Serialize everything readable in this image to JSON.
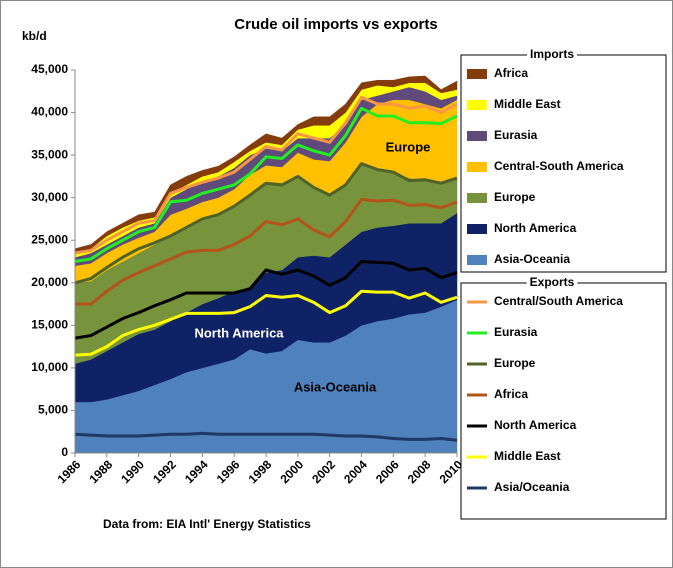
{
  "chart_data": {
    "type": "area",
    "stacked": true,
    "title": "Crude oil imports vs exports",
    "ylabel": "kb/d",
    "note": "Data from: EIA Intl' Energy Statistics",
    "annotations": [
      "Europe",
      "North America",
      "Asia-Oceania"
    ],
    "x": [
      1986,
      1987,
      1988,
      1989,
      1990,
      1991,
      1992,
      1993,
      1994,
      1995,
      1996,
      1997,
      1998,
      1999,
      2000,
      2001,
      2002,
      2003,
      2004,
      2005,
      2006,
      2007,
      2008,
      2009,
      2010
    ],
    "xlim": [
      1986,
      2010
    ],
    "xticks": [
      1986,
      1988,
      1990,
      1992,
      1994,
      1996,
      1998,
      2000,
      2002,
      2004,
      2006,
      2008,
      2010
    ],
    "ylim": [
      0,
      45000
    ],
    "yticks": [
      0,
      {
        "value": 5000,
        "label": "5,000"
      },
      {
        "value": 10000,
        "label": "10,000"
      },
      {
        "value": 15000,
        "label": "15,000"
      },
      {
        "value": 20000,
        "label": "20,000"
      },
      {
        "value": 25000,
        "label": "25,000"
      },
      {
        "value": 30000,
        "label": "30,000"
      },
      {
        "value": 35000,
        "label": "35,000"
      },
      {
        "value": 40000,
        "label": "40,000"
      },
      {
        "value": 45000,
        "label": "45,000"
      }
    ],
    "legend_title": "Imports",
    "series": [
      {
        "name": "Asia-Oceania",
        "color": "#4f81bd",
        "values": [
          6000,
          6000,
          6300,
          6800,
          7300,
          8000,
          8700,
          9500,
          10000,
          10500,
          11000,
          12200,
          11700,
          12000,
          13300,
          13000,
          13000,
          13800,
          15000,
          15500,
          15800,
          16300,
          16500,
          17200,
          18000
        ]
      },
      {
        "name": "North America",
        "color": "#0f2266",
        "values": [
          4500,
          5000,
          5700,
          6200,
          6700,
          6500,
          6800,
          7000,
          7500,
          7700,
          8000,
          7300,
          9500,
          9500,
          9700,
          10200,
          10000,
          10700,
          11000,
          11000,
          10900,
          10700,
          10500,
          9800,
          10200
        ]
      },
      {
        "name": "Europe",
        "color": "#77933c",
        "values": [
          9500,
          9200,
          9500,
          9500,
          9500,
          10000,
          10000,
          10000,
          10000,
          9800,
          10000,
          11000,
          10500,
          10000,
          9500,
          8100,
          7500,
          7000,
          8000,
          6800,
          6300,
          5300,
          5000,
          4800,
          4000
        ]
      },
      {
        "name": "Central-South America",
        "color": "#ffc000",
        "values": [
          2000,
          2100,
          2000,
          2000,
          1800,
          1500,
          2500,
          2200,
          2000,
          2000,
          2000,
          2200,
          2100,
          2100,
          2800,
          3200,
          3800,
          5000,
          5500,
          7700,
          8500,
          9200,
          9000,
          8700,
          9300
        ]
      },
      {
        "name": "Eurasia",
        "color": "#604a7b",
        "values": [
          1000,
          1200,
          1000,
          1000,
          1200,
          1000,
          2000,
          2300,
          2500,
          2500,
          2500,
          2300,
          2000,
          1900,
          1700,
          2500,
          2700,
          2000,
          2000,
          1000,
          1000,
          1500,
          1500,
          1000,
          500
        ]
      },
      {
        "name": "Middle East",
        "color": "#ffff00",
        "values": [
          500,
          500,
          1000,
          1000,
          800,
          700,
          500,
          500,
          500,
          500,
          700,
          500,
          700,
          700,
          1000,
          1500,
          1500,
          1500,
          1200,
          1200,
          500,
          500,
          1000,
          800,
          700
        ]
      },
      {
        "name": "Africa",
        "color": "#843c0c",
        "values": [
          500,
          500,
          500,
          500,
          700,
          600,
          1000,
          1000,
          700,
          700,
          600,
          700,
          1000,
          800,
          600,
          1000,
          1000,
          1000,
          800,
          600,
          800,
          700,
          800,
          400,
          1000
        ]
      }
    ],
    "overlay": {
      "type": "line",
      "stacked": true,
      "legend_title": "Exports",
      "series": [
        {
          "name": "Asia/Oceania",
          "color": "#1f3864",
          "values": [
            2200,
            2100,
            2000,
            2000,
            2000,
            2100,
            2200,
            2200,
            2300,
            2200,
            2200,
            2200,
            2200,
            2200,
            2200,
            2200,
            2100,
            2000,
            2000,
            1900,
            1700,
            1600,
            1600,
            1700,
            1500
          ]
        },
        {
          "name": "Middle East",
          "color": "#ffff00",
          "values": [
            9300,
            9500,
            10500,
            11800,
            12500,
            12900,
            13500,
            14200,
            14100,
            14200,
            14300,
            15000,
            16300,
            16100,
            16300,
            15500,
            14400,
            15300,
            17000,
            17000,
            17200,
            16600,
            17200,
            16000,
            16800
          ]
        },
        {
          "name": "North America",
          "color": "#000000",
          "values": [
            2000,
            2200,
            2300,
            2000,
            2000,
            2300,
            2300,
            2400,
            2400,
            2400,
            2300,
            2100,
            3000,
            2700,
            3000,
            3100,
            3200,
            3300,
            3500,
            3500,
            3400,
            3300,
            2900,
            2900,
            2900
          ]
        },
        {
          "name": "Africa",
          "color": "#b3541a",
          "values": [
            4000,
            3700,
            4200,
            4500,
            4700,
            4700,
            4800,
            4800,
            5000,
            5000,
            5700,
            6200,
            5700,
            5800,
            6000,
            5400,
            5700,
            6600,
            7300,
            7200,
            7400,
            7600,
            7500,
            8200,
            8300
          ]
        },
        {
          "name": "Europe",
          "color": "#4f6228",
          "values": [
            2500,
            3000,
            2800,
            2700,
            2800,
            2700,
            2700,
            2900,
            3700,
            4200,
            4500,
            4800,
            4500,
            4700,
            5000,
            5000,
            4900,
            4300,
            4200,
            3700,
            3300,
            2900,
            2900,
            2900,
            2800
          ]
        },
        {
          "name": "Eurasia",
          "color": "#22ee22",
          "values": [
            2500,
            2300,
            2200,
            2000,
            2000,
            1800,
            4000,
            3200,
            3000,
            3000,
            2500,
            2500,
            3100,
            3100,
            3700,
            4300,
            4700,
            5800,
            6500,
            6300,
            6600,
            6800,
            6700,
            7000,
            7300
          ]
        },
        {
          "name": "Central/South America",
          "color": "#f79646",
          "values": [
            1000,
            1000,
            1000,
            1000,
            1000,
            800,
            1000,
            1500,
            1300,
            1300,
            1500,
            1700,
            1200,
            1000,
            1300,
            1500,
            1500,
            1500,
            1300,
            1400,
            1400,
            1700,
            2000,
            1300,
            1400
          ]
        }
      ]
    }
  }
}
